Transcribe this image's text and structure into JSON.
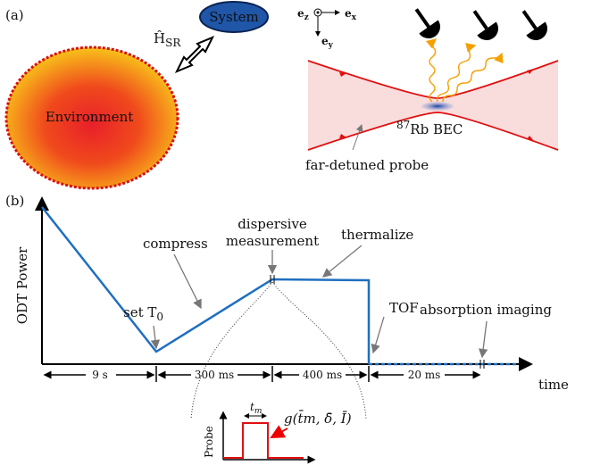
{
  "panel_a": {
    "label": "(a)",
    "system": "System",
    "coupling": {
      "base": "Ĥ",
      "sub": "SR"
    },
    "environment": "Environment",
    "axes": {
      "ez": {
        "base": "e",
        "sub": "z"
      },
      "ex": {
        "base": "e",
        "sub": "x"
      },
      "ey": {
        "base": "e",
        "sub": "y"
      }
    },
    "bec": {
      "sup": "87",
      "base": "Rb BEC"
    },
    "probe": "far-detuned probe"
  },
  "panel_b": {
    "label": "(b)",
    "y_label": "ODT Power",
    "annotations": {
      "set_t0": {
        "base": "set T",
        "sub": "0"
      },
      "compress": "compress",
      "dispersive": [
        "dispersive",
        "measurement"
      ],
      "thermalize": "thermalize",
      "tof": "TOF",
      "imaging": "absorption imaging"
    },
    "durations": [
      "9 s",
      "300 ms",
      "400 ms",
      "20 ms"
    ],
    "x_label": "time",
    "inset": {
      "y_label": "Probe",
      "width": {
        "base": "t",
        "sub": "m"
      },
      "function": "g(t̄m, δ̄, Ī)"
    }
  }
}
